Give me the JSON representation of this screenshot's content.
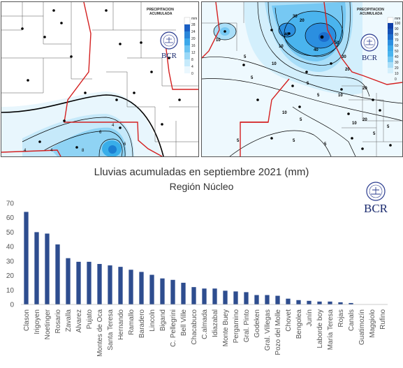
{
  "maps": {
    "left": {
      "legend_title_line1": "PRECIPITACION",
      "legend_title_line2": "ACUMULADA",
      "legend_ticks": [
        "mm",
        "28",
        "24",
        "20",
        "16",
        "12",
        "8",
        "4",
        "0"
      ],
      "contour_labels": [
        "4",
        "6",
        "8",
        "4",
        "4",
        "6"
      ],
      "logo_text": "BCR"
    },
    "right": {
      "legend_title_line1": "PRECIPITACION",
      "legend_title_line2": "ACUMULADA",
      "legend_ticks": [
        "mm",
        "100",
        "90",
        "80",
        "70",
        "60",
        "50",
        "40",
        "30",
        "20",
        "10",
        "0"
      ],
      "contour_labels": [
        "30",
        "40",
        "40",
        "50",
        "30",
        "20",
        "10",
        "5",
        "10",
        "20",
        "5",
        "5",
        "10",
        "10",
        "5",
        "20",
        "20",
        "10",
        "5",
        "10",
        "5",
        "5",
        "5",
        "5",
        "5"
      ],
      "logo_text": "BCR"
    }
  },
  "chart_logo_text": "BCR",
  "chart_data": {
    "type": "bar",
    "title": "Lluvias acumuladas en septiembre 2021 (mm)",
    "subtitle": "Región Núcleo",
    "xlabel": "",
    "ylabel": "",
    "ylim": [
      0,
      70
    ],
    "yticks": [
      0,
      10,
      20,
      30,
      40,
      50,
      60,
      70
    ],
    "grid": false,
    "bar_color": "#2e4d8f",
    "categories": [
      "Clason",
      "Irigoyen",
      "Noetinger",
      "Rosario",
      "Zavalla",
      "Alvarez",
      "Pujato",
      "Montes de Oca",
      "Santa Teresa",
      "Hernando",
      "Ramallo",
      "Baradero",
      "Lincoln",
      "Bigand",
      "C. Pellegrini",
      "Bell Ville",
      "Chacabuco",
      "C.almada",
      "Idiazabal",
      "Monte Buey",
      "Pergamino",
      "Gral. Pinto",
      "Godeken",
      "Gral. Villegas",
      "Pozo del Molle",
      "Chovet",
      "Bengolea",
      "Junín",
      "Laborde boy",
      "María Teresa",
      "Rojas",
      "Canals",
      "Guatimozín",
      "Maggiolo",
      "Rufino"
    ],
    "values": [
      64,
      50,
      49,
      41.5,
      32,
      29.5,
      29.5,
      28,
      27,
      26,
      24,
      22.5,
      20.5,
      18,
      17,
      15,
      12,
      11,
      11,
      9.5,
      9,
      8.5,
      6.5,
      6.5,
      6,
      4,
      3,
      2.5,
      2,
      2,
      1.5,
      1,
      0,
      0,
      0
    ]
  }
}
